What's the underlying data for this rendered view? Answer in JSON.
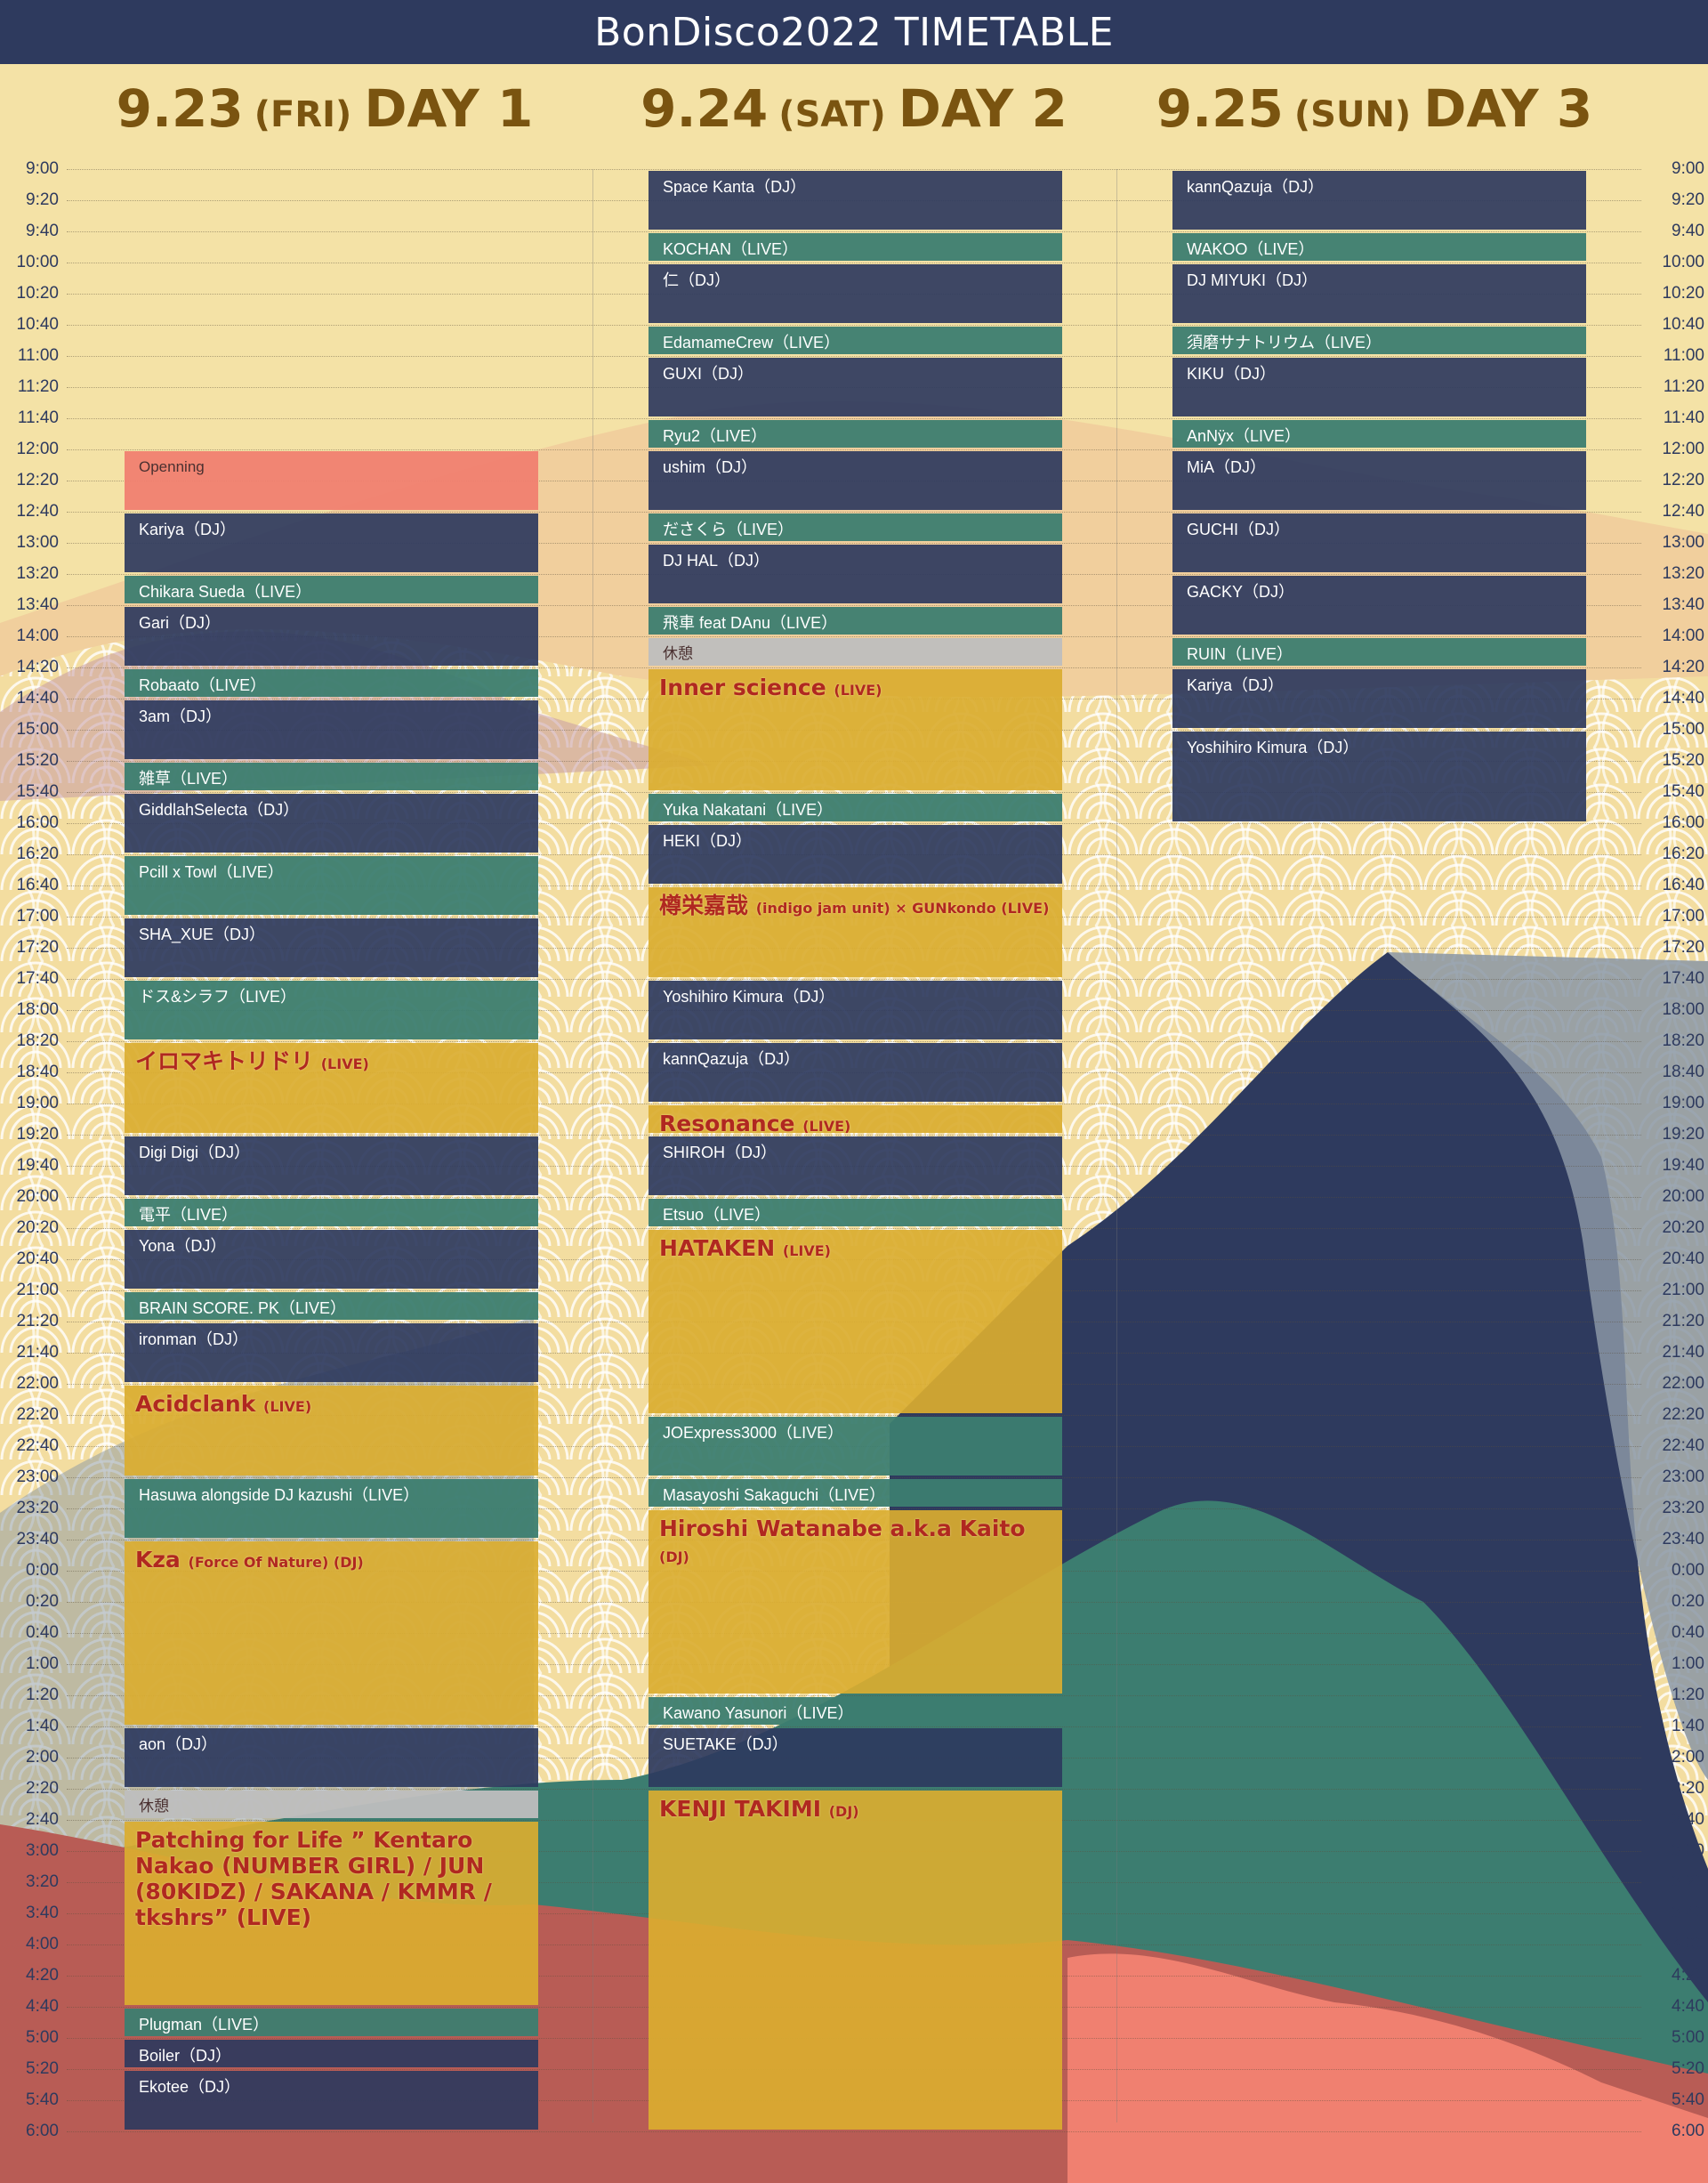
{
  "title": "BonDisco2022 TIMETABLE",
  "days": [
    {
      "date": "9.23",
      "dow": "(FRI)",
      "label": "DAY 1"
    },
    {
      "date": "9.24",
      "dow": "(SAT)",
      "label": "DAY 2"
    },
    {
      "date": "9.25",
      "dow": "(SUN)",
      "label": "DAY 3"
    }
  ],
  "times": [
    "9:00",
    "9:20",
    "9:40",
    "10:00",
    "10:20",
    "10:40",
    "11:00",
    "11:20",
    "11:40",
    "12:00",
    "12:20",
    "12:40",
    "13:00",
    "13:20",
    "13:40",
    "14:00",
    "14:20",
    "14:40",
    "15:00",
    "15:20",
    "15:40",
    "16:00",
    "16:20",
    "16:40",
    "17:00",
    "17:20",
    "17:40",
    "18:00",
    "18:20",
    "18:40",
    "19:00",
    "19:20",
    "19:40",
    "20:00",
    "20:20",
    "20:40",
    "21:00",
    "21:20",
    "21:40",
    "22:00",
    "22:20",
    "22:40",
    "23:00",
    "23:20",
    "23:40",
    "0:00",
    "0:20",
    "0:40",
    "1:00",
    "1:20",
    "1:40",
    "2:00",
    "2:20",
    "2:40",
    "3:00",
    "3:20",
    "3:40",
    "4:00",
    "4:20",
    "4:40",
    "5:00",
    "5:20",
    "5:40",
    "6:00"
  ],
  "schedule": [
    [
      {
        "start": "12:00",
        "end": "12:40",
        "kind": "opening",
        "text": "Openning"
      },
      {
        "start": "12:40",
        "end": "13:20",
        "kind": "dj",
        "text": "Kariya（DJ）"
      },
      {
        "start": "13:20",
        "end": "13:40",
        "kind": "live",
        "text": "Chikara Sueda（LIVE）"
      },
      {
        "start": "13:40",
        "end": "14:20",
        "kind": "dj",
        "text": "Gari（DJ）"
      },
      {
        "start": "14:20",
        "end": "14:40",
        "kind": "live",
        "text": "Robaato（LIVE）"
      },
      {
        "start": "14:40",
        "end": "15:20",
        "kind": "dj",
        "text": "3am（DJ）"
      },
      {
        "start": "15:20",
        "end": "15:40",
        "kind": "live",
        "text": "雑草（LIVE）"
      },
      {
        "start": "15:40",
        "end": "16:20",
        "kind": "dj",
        "text": "GiddlahSelecta（DJ）"
      },
      {
        "start": "16:20",
        "end": "17:00",
        "kind": "live",
        "text": "Pcill x Towl（LIVE）"
      },
      {
        "start": "17:00",
        "end": "17:40",
        "kind": "dj",
        "text": "SHA_XUE（DJ）"
      },
      {
        "start": "17:40",
        "end": "18:20",
        "kind": "live",
        "text": "ドス&シラフ（LIVE）"
      },
      {
        "start": "18:20",
        "end": "19:20",
        "kind": "feature",
        "text": "イロマキトリドリ",
        "tag": "(LIVE)"
      },
      {
        "start": "19:20",
        "end": "20:00",
        "kind": "dj",
        "text": "Digi Digi（DJ）"
      },
      {
        "start": "20:00",
        "end": "20:20",
        "kind": "live",
        "text": "電平（LIVE）"
      },
      {
        "start": "20:20",
        "end": "21:00",
        "kind": "dj",
        "text": "Yona（DJ）"
      },
      {
        "start": "21:00",
        "end": "21:20",
        "kind": "live",
        "text": "BRAIN SCORE. PK（LIVE）"
      },
      {
        "start": "21:20",
        "end": "22:00",
        "kind": "dj",
        "text": "ironman（DJ）"
      },
      {
        "start": "22:00",
        "end": "23:00",
        "kind": "feature",
        "text": "Acidclank",
        "tag": "(LIVE)"
      },
      {
        "start": "23:00",
        "end": "23:40",
        "kind": "live",
        "text": "Hasuwa alongside DJ kazushi（LIVE）"
      },
      {
        "start": "23:40",
        "end": "1:40",
        "kind": "feature",
        "text": "Kza",
        "tag": "(Force Of Nature)  (DJ)"
      },
      {
        "start": "1:40",
        "end": "2:20",
        "kind": "dj",
        "text": "aon（DJ）"
      },
      {
        "start": "2:20",
        "end": "2:40",
        "kind": "break",
        "text": "休憩"
      },
      {
        "start": "2:40",
        "end": "4:40",
        "kind": "feature",
        "text": "Patching for Life ” Kentaro Nakao (NUMBER GIRL) / JUN (80KIDZ) / SAKANA / KMMR / tkshrs” (LIVE)"
      },
      {
        "start": "4:40",
        "end": "5:00",
        "kind": "live",
        "text": "Plugman（LIVE）"
      },
      {
        "start": "5:00",
        "end": "5:20",
        "kind": "dj",
        "text": "Boiler（DJ）"
      },
      {
        "start": "5:20",
        "end": "6:00",
        "kind": "dj",
        "text": "Ekotee（DJ）"
      }
    ],
    [
      {
        "start": "9:00",
        "end": "9:40",
        "kind": "dj",
        "text": "Space Kanta（DJ）"
      },
      {
        "start": "9:40",
        "end": "10:00",
        "kind": "live",
        "text": "KOCHAN（LIVE）"
      },
      {
        "start": "10:00",
        "end": "10:40",
        "kind": "dj",
        "text": "仁（DJ）"
      },
      {
        "start": "10:40",
        "end": "11:00",
        "kind": "live",
        "text": "EdamameCrew（LIVE）"
      },
      {
        "start": "11:00",
        "end": "11:40",
        "kind": "dj",
        "text": "GUXI（DJ）"
      },
      {
        "start": "11:40",
        "end": "12:00",
        "kind": "live",
        "text": "Ryu2（LIVE）"
      },
      {
        "start": "12:00",
        "end": "12:40",
        "kind": "dj",
        "text": "ushim（DJ）"
      },
      {
        "start": "12:40",
        "end": "13:00",
        "kind": "live",
        "text": "ださくら（LIVE）"
      },
      {
        "start": "13:00",
        "end": "13:40",
        "kind": "dj",
        "text": "DJ HAL（DJ）"
      },
      {
        "start": "13:40",
        "end": "14:00",
        "kind": "live",
        "text": "飛車 feat DAnu（LIVE）"
      },
      {
        "start": "14:00",
        "end": "14:20",
        "kind": "break",
        "text": "休憩"
      },
      {
        "start": "14:20",
        "end": "15:40",
        "kind": "feature",
        "text": "Inner science",
        "tag": "(LIVE)"
      },
      {
        "start": "15:40",
        "end": "16:00",
        "kind": "live",
        "text": "Yuka Nakatani（LIVE）"
      },
      {
        "start": "16:00",
        "end": "16:40",
        "kind": "dj",
        "text": "HEKI（DJ）"
      },
      {
        "start": "16:40",
        "end": "17:40",
        "kind": "feature",
        "text": "樽栄嘉哉",
        "tag": "(indigo jam unit)  × GUNkondo (LIVE)"
      },
      {
        "start": "17:40",
        "end": "18:20",
        "kind": "dj",
        "text": "Yoshihiro Kimura（DJ）"
      },
      {
        "start": "18:20",
        "end": "19:00",
        "kind": "dj",
        "text": "kannQazuja（DJ）"
      },
      {
        "start": "19:00",
        "end": "19:20",
        "kind": "feature",
        "text": "Resonance",
        "tag": "(LIVE)"
      },
      {
        "start": "19:20",
        "end": "20:00",
        "kind": "dj",
        "text": "SHIROH（DJ）"
      },
      {
        "start": "20:00",
        "end": "20:20",
        "kind": "live",
        "text": "Etsuo（LIVE）"
      },
      {
        "start": "20:20",
        "end": "22:20",
        "kind": "feature",
        "text": "HATAKEN",
        "tag": "(LIVE)"
      },
      {
        "start": "22:20",
        "end": "23:00",
        "kind": "live",
        "text": "JOExpress3000（LIVE）"
      },
      {
        "start": "23:00",
        "end": "23:20",
        "kind": "live",
        "text": "Masayoshi Sakaguchi（LIVE）"
      },
      {
        "start": "23:20",
        "end": "1:20",
        "kind": "feature",
        "text": "Hiroshi Watanabe a.k.a Kaito",
        "tag": "(DJ)"
      },
      {
        "start": "1:20",
        "end": "1:40",
        "kind": "live",
        "text": "Kawano Yasunori（LIVE）"
      },
      {
        "start": "1:40",
        "end": "2:20",
        "kind": "dj",
        "text": "SUETAKE（DJ）"
      },
      {
        "start": "2:20",
        "end": "6:00",
        "kind": "feature",
        "text": "KENJI TAKIMI",
        "tag": "(DJ)"
      }
    ],
    [
      {
        "start": "9:00",
        "end": "9:40",
        "kind": "dj",
        "text": "kannQazuja（DJ）"
      },
      {
        "start": "9:40",
        "end": "10:00",
        "kind": "live",
        "text": "WAKOO（LIVE）"
      },
      {
        "start": "10:00",
        "end": "10:40",
        "kind": "dj",
        "text": "DJ MIYUKI（DJ）"
      },
      {
        "start": "10:40",
        "end": "11:00",
        "kind": "live",
        "text": "須磨サナトリウム（LIVE）"
      },
      {
        "start": "11:00",
        "end": "11:40",
        "kind": "dj",
        "text": "KIKU（DJ）"
      },
      {
        "start": "11:40",
        "end": "12:00",
        "kind": "live",
        "text": "AnNÿx（LIVE）"
      },
      {
        "start": "12:00",
        "end": "12:40",
        "kind": "dj",
        "text": "MiA（DJ）"
      },
      {
        "start": "12:40",
        "end": "13:20",
        "kind": "dj",
        "text": "GUCHI（DJ）"
      },
      {
        "start": "13:20",
        "end": "14:00",
        "kind": "dj",
        "text": "GACKY（DJ）"
      },
      {
        "start": "14:00",
        "end": "14:20",
        "kind": "live",
        "text": "RUIN（LIVE）"
      },
      {
        "start": "14:20",
        "end": "15:00",
        "kind": "dj",
        "text": "Kariya（DJ）"
      },
      {
        "start": "15:00",
        "end": "16:00",
        "kind": "dj",
        "text": "Yoshihiro Kimura（DJ）"
      }
    ]
  ],
  "colors": {
    "header": "#2e3a5e",
    "dj": "#2e3a5e",
    "live": "#3c7d70",
    "feature": "#daac30",
    "opening": "#f08070",
    "break": "#bebebe",
    "day_text": "#7a5410"
  }
}
